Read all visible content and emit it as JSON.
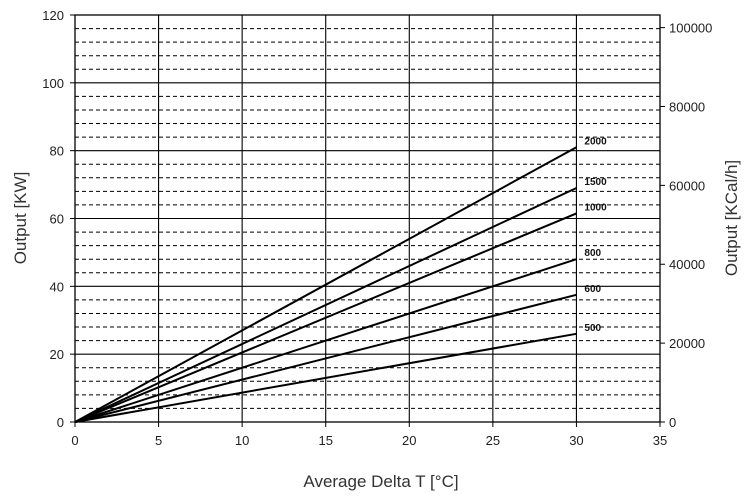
{
  "chart_data": {
    "type": "line",
    "title": "",
    "xlabel": "Average Delta T [°C]",
    "ylabel": "Output [KW]",
    "y2label": "Output [KCal/h]",
    "xlim": [
      0,
      35
    ],
    "ylim": [
      0,
      120
    ],
    "y2lim": [
      0,
      103200
    ],
    "x_ticks": [
      "0",
      "5",
      "10",
      "15",
      "20",
      "25",
      "30",
      "35"
    ],
    "y_ticks": [
      "0",
      "20",
      "40",
      "60",
      "80",
      "100",
      "120"
    ],
    "y2_ticks": [
      "0",
      "20000",
      "40000",
      "60000",
      "80000",
      "100000"
    ],
    "x_tick_values": [
      0,
      5,
      10,
      15,
      20,
      25,
      30,
      35
    ],
    "y_tick_values": [
      0,
      20,
      40,
      60,
      80,
      100,
      120
    ],
    "y2_tick_values": [
      0,
      20000,
      40000,
      60000,
      80000,
      100000
    ],
    "grid": {
      "major_vertical": [
        5,
        10,
        15,
        20,
        25,
        30
      ],
      "major_horizontal": [
        20,
        40,
        60,
        80,
        100
      ],
      "minor_horizontal_step": 4,
      "minor_style": "dashed"
    },
    "series": [
      {
        "name": "2000",
        "x": [
          0,
          30
        ],
        "y": [
          0,
          81
        ]
      },
      {
        "name": "1500",
        "x": [
          0,
          30
        ],
        "y": [
          0,
          69
        ]
      },
      {
        "name": "1000",
        "x": [
          0,
          30
        ],
        "y": [
          0,
          61.5
        ]
      },
      {
        "name": "800",
        "x": [
          0,
          30
        ],
        "y": [
          0,
          48
        ]
      },
      {
        "name": "600",
        "x": [
          0,
          30
        ],
        "y": [
          0,
          37.5
        ]
      },
      {
        "name": "500",
        "x": [
          0,
          30
        ],
        "y": [
          0,
          26
        ]
      }
    ]
  }
}
